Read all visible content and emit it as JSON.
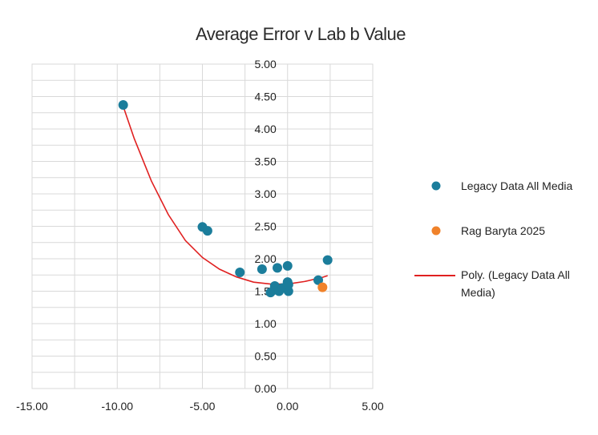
{
  "chart_data": {
    "type": "scatter",
    "title": "Average Error v Lab b Value",
    "xlabel": "",
    "ylabel": "",
    "xlim": [
      -15,
      5
    ],
    "ylim": [
      0,
      5
    ],
    "x_ticks": [
      "-15.00",
      "-10.00",
      "-5.00",
      "0.00",
      "5.00"
    ],
    "y_ticks": [
      "0.00",
      "0.50",
      "1.00",
      "1.50",
      "2.00",
      "2.50",
      "3.00",
      "3.50",
      "4.00",
      "4.50",
      "5.00"
    ],
    "grid": true,
    "legend_position": "right",
    "series": [
      {
        "name": "Legacy Data All Media",
        "color": "#1b7d9b",
        "marker": "circle",
        "points": [
          [
            -9.65,
            4.37
          ],
          [
            -5.0,
            2.49
          ],
          [
            -4.7,
            2.43
          ],
          [
            -2.8,
            1.79
          ],
          [
            -1.5,
            1.84
          ],
          [
            -1.0,
            1.48
          ],
          [
            -0.8,
            1.52
          ],
          [
            -0.75,
            1.58
          ],
          [
            -0.6,
            1.86
          ],
          [
            -0.5,
            1.5
          ],
          [
            -0.3,
            1.55
          ],
          [
            0.0,
            1.89
          ],
          [
            0.0,
            1.64
          ],
          [
            0.05,
            1.5
          ],
          [
            0.05,
            1.6
          ],
          [
            1.8,
            1.67
          ],
          [
            2.35,
            1.98
          ]
        ]
      },
      {
        "name": "Rag Baryta 2025",
        "color": "#f0822a",
        "marker": "circle",
        "points": [
          [
            2.05,
            1.56
          ]
        ]
      },
      {
        "name": "Poly. (Legacy Data All Media)",
        "color": "#e02020",
        "type": "line",
        "trend_points": [
          [
            -9.65,
            4.35
          ],
          [
            -9.0,
            3.85
          ],
          [
            -8.0,
            3.2
          ],
          [
            -7.0,
            2.68
          ],
          [
            -6.0,
            2.28
          ],
          [
            -5.0,
            2.02
          ],
          [
            -4.0,
            1.84
          ],
          [
            -3.0,
            1.72
          ],
          [
            -2.0,
            1.64
          ],
          [
            -1.0,
            1.61
          ],
          [
            0.0,
            1.61
          ],
          [
            1.0,
            1.65
          ],
          [
            2.0,
            1.71
          ],
          [
            2.35,
            1.74
          ]
        ]
      }
    ],
    "legend": [
      {
        "label": "Legacy Data All Media",
        "symbol": "dot",
        "color": "#1b7d9b"
      },
      {
        "label": "Rag Baryta 2025",
        "symbol": "dot",
        "color": "#f0822a"
      },
      {
        "label_line1": "Poly. (Legacy Data All",
        "label_line2": "Media)",
        "symbol": "line",
        "color": "#e02020"
      }
    ]
  }
}
